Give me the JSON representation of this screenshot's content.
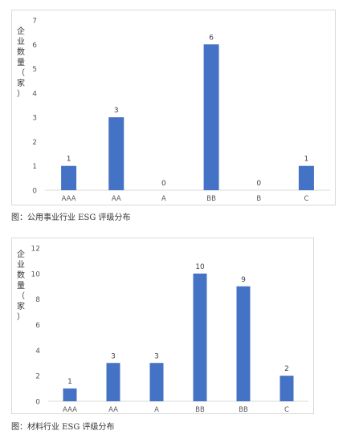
{
  "chart_data": [
    {
      "type": "bar",
      "ylabel": "企业数量（家）",
      "categories": [
        "AAA",
        "AA",
        "A",
        "BB",
        "B",
        "C"
      ],
      "values": [
        1,
        3,
        0,
        6,
        0,
        1
      ],
      "ylim": [
        0,
        7
      ],
      "yticks": [
        0,
        1,
        2,
        3,
        4,
        5,
        6,
        7
      ],
      "grid": false,
      "bar_color": "#4472C4",
      "caption": "图：公用事业行业 ESG 评级分布"
    },
    {
      "type": "bar",
      "ylabel": "企业数量（家）",
      "categories": [
        "AAA",
        "AA",
        "A",
        "BB",
        "BB",
        "C"
      ],
      "values": [
        1,
        3,
        3,
        10,
        9,
        2
      ],
      "ylim": [
        0,
        12
      ],
      "yticks": [
        0,
        2,
        4,
        6,
        8,
        10,
        12
      ],
      "grid": false,
      "bar_color": "#4472C4",
      "caption": "图：材料行业 ESG 评级分布"
    }
  ]
}
